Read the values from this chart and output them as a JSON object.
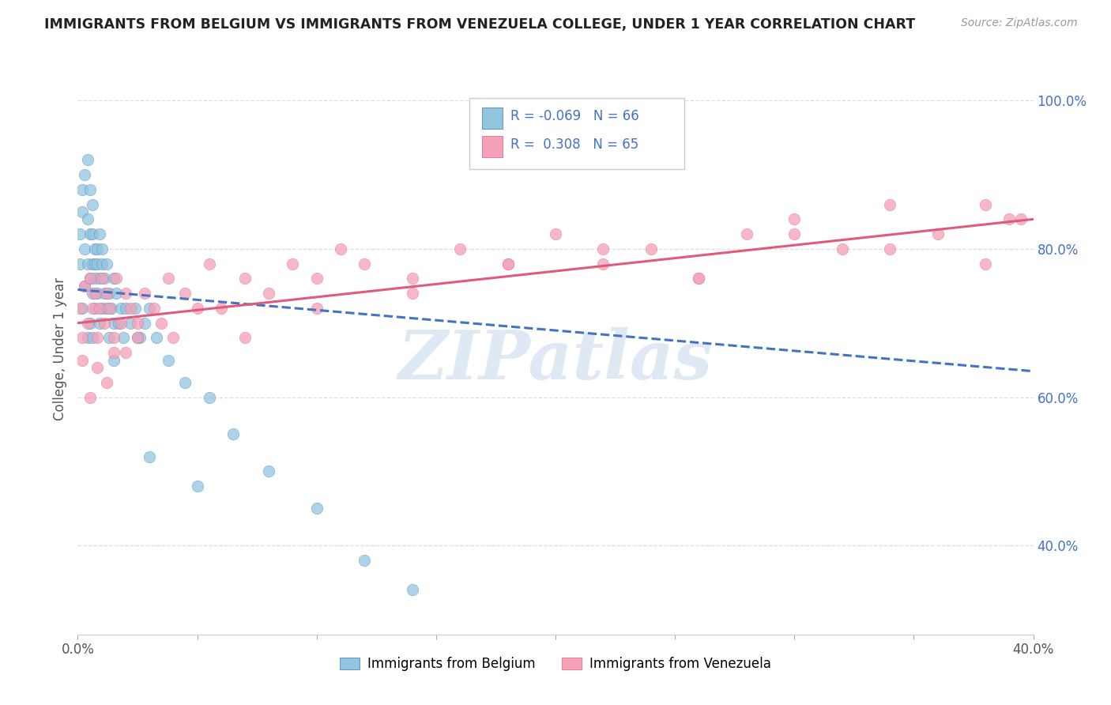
{
  "title": "IMMIGRANTS FROM BELGIUM VS IMMIGRANTS FROM VENEZUELA COLLEGE, UNDER 1 YEAR CORRELATION CHART",
  "source": "Source: ZipAtlas.com",
  "ylabel": "College, Under 1 year",
  "legend_label1": "Immigrants from Belgium",
  "legend_label2": "Immigrants from Venezuela",
  "r1": -0.069,
  "n1": 66,
  "r2": 0.308,
  "n2": 65,
  "color_blue": "#92c5de",
  "color_pink": "#f4a0b8",
  "color_blue_line": "#4472c4",
  "color_pink_line": "#e05a7a",
  "xlim": [
    0.0,
    0.4
  ],
  "ylim": [
    0.28,
    1.05
  ],
  "ytick_right": [
    0.4,
    0.6,
    0.8,
    1.0
  ],
  "ytick_right_labels": [
    "40.0%",
    "60.0%",
    "80.0%",
    "100.0%"
  ],
  "watermark": "ZIPatlas",
  "blue_line_x": [
    0.0,
    0.4
  ],
  "blue_line_y": [
    0.745,
    0.635
  ],
  "pink_line_x": [
    0.0,
    0.4
  ],
  "pink_line_y": [
    0.7,
    0.84
  ],
  "belgium_x": [
    0.001,
    0.001,
    0.002,
    0.002,
    0.002,
    0.003,
    0.003,
    0.003,
    0.004,
    0.004,
    0.004,
    0.004,
    0.005,
    0.005,
    0.005,
    0.005,
    0.006,
    0.006,
    0.006,
    0.006,
    0.006,
    0.007,
    0.007,
    0.007,
    0.007,
    0.008,
    0.008,
    0.008,
    0.009,
    0.009,
    0.009,
    0.01,
    0.01,
    0.01,
    0.011,
    0.011,
    0.012,
    0.012,
    0.013,
    0.013,
    0.014,
    0.015,
    0.015,
    0.016,
    0.017,
    0.018,
    0.019,
    0.02,
    0.022,
    0.024,
    0.026,
    0.028,
    0.03,
    0.033,
    0.038,
    0.045,
    0.055,
    0.065,
    0.08,
    0.1,
    0.12,
    0.14,
    0.015,
    0.025,
    0.03,
    0.05
  ],
  "belgium_y": [
    0.78,
    0.82,
    0.88,
    0.72,
    0.85,
    0.8,
    0.75,
    0.9,
    0.78,
    0.68,
    0.84,
    0.92,
    0.76,
    0.82,
    0.7,
    0.88,
    0.78,
    0.74,
    0.82,
    0.68,
    0.86,
    0.78,
    0.72,
    0.8,
    0.76,
    0.78,
    0.74,
    0.8,
    0.76,
    0.7,
    0.82,
    0.78,
    0.72,
    0.8,
    0.74,
    0.76,
    0.72,
    0.78,
    0.74,
    0.68,
    0.72,
    0.76,
    0.7,
    0.74,
    0.7,
    0.72,
    0.68,
    0.72,
    0.7,
    0.72,
    0.68,
    0.7,
    0.72,
    0.68,
    0.65,
    0.62,
    0.6,
    0.55,
    0.5,
    0.45,
    0.38,
    0.34,
    0.65,
    0.68,
    0.52,
    0.48
  ],
  "venezuela_x": [
    0.001,
    0.002,
    0.003,
    0.004,
    0.005,
    0.006,
    0.007,
    0.008,
    0.009,
    0.01,
    0.011,
    0.012,
    0.013,
    0.015,
    0.016,
    0.018,
    0.02,
    0.022,
    0.025,
    0.028,
    0.032,
    0.038,
    0.045,
    0.055,
    0.06,
    0.07,
    0.08,
    0.09,
    0.1,
    0.11,
    0.12,
    0.14,
    0.16,
    0.18,
    0.2,
    0.22,
    0.24,
    0.26,
    0.28,
    0.3,
    0.32,
    0.34,
    0.36,
    0.38,
    0.39,
    0.002,
    0.005,
    0.008,
    0.015,
    0.025,
    0.035,
    0.05,
    0.07,
    0.1,
    0.14,
    0.18,
    0.22,
    0.26,
    0.3,
    0.34,
    0.38,
    0.395,
    0.012,
    0.02,
    0.04
  ],
  "venezuela_y": [
    0.72,
    0.68,
    0.75,
    0.7,
    0.76,
    0.72,
    0.74,
    0.68,
    0.72,
    0.76,
    0.7,
    0.74,
    0.72,
    0.68,
    0.76,
    0.7,
    0.74,
    0.72,
    0.7,
    0.74,
    0.72,
    0.76,
    0.74,
    0.78,
    0.72,
    0.76,
    0.74,
    0.78,
    0.76,
    0.8,
    0.78,
    0.76,
    0.8,
    0.78,
    0.82,
    0.78,
    0.8,
    0.76,
    0.82,
    0.84,
    0.8,
    0.86,
    0.82,
    0.78,
    0.84,
    0.65,
    0.6,
    0.64,
    0.66,
    0.68,
    0.7,
    0.72,
    0.68,
    0.72,
    0.74,
    0.78,
    0.8,
    0.76,
    0.82,
    0.8,
    0.86,
    0.84,
    0.62,
    0.66,
    0.68
  ]
}
